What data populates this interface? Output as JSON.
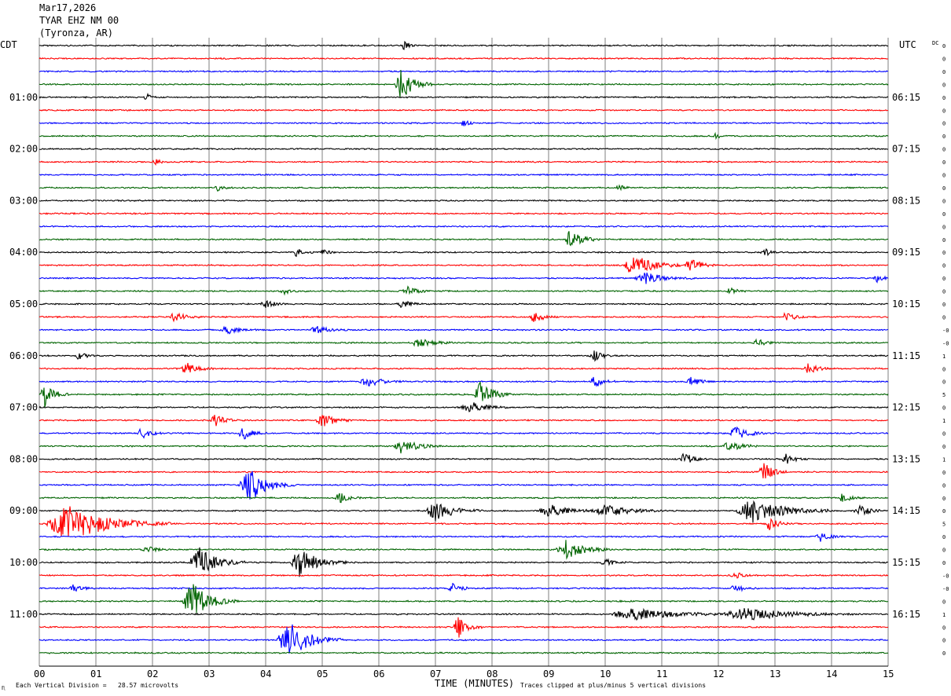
{
  "header": {
    "date": "Mar17,2026",
    "station": "TYAR EHZ NM 00",
    "location": "(Tyronza, AR)"
  },
  "left_zone_label": "CDT",
  "right_zone_label": "UTC",
  "dc_label": "DC",
  "chart_data": {
    "type": "line",
    "title": "TYAR EHZ NM 00",
    "xlabel": "TIME (MINUTES)",
    "xlim": [
      0,
      15
    ],
    "x_ticks": [
      "00",
      "01",
      "02",
      "03",
      "04",
      "05",
      "06",
      "07",
      "08",
      "09",
      "10",
      "11",
      "12",
      "13",
      "14",
      "15"
    ],
    "traces_per_row_minutes": 15,
    "trace_count": 48,
    "trace_colors": [
      "#000000",
      "#ff0000",
      "#0000ff",
      "#006400"
    ],
    "left_hour_labels": [
      {
        "trace": 4,
        "label": "01:00"
      },
      {
        "trace": 8,
        "label": "02:00"
      },
      {
        "trace": 12,
        "label": "03:00"
      },
      {
        "trace": 16,
        "label": "04:00"
      },
      {
        "trace": 20,
        "label": "05:00"
      },
      {
        "trace": 24,
        "label": "06:00"
      },
      {
        "trace": 28,
        "label": "07:00"
      },
      {
        "trace": 32,
        "label": "08:00"
      },
      {
        "trace": 36,
        "label": "09:00"
      },
      {
        "trace": 40,
        "label": "10:00"
      },
      {
        "trace": 44,
        "label": "11:00"
      }
    ],
    "right_hour_labels": [
      {
        "trace": 4,
        "label": "06:15"
      },
      {
        "trace": 8,
        "label": "07:15"
      },
      {
        "trace": 12,
        "label": "08:15"
      },
      {
        "trace": 16,
        "label": "09:15"
      },
      {
        "trace": 20,
        "label": "10:15"
      },
      {
        "trace": 24,
        "label": "11:15"
      },
      {
        "trace": 28,
        "label": "12:15"
      },
      {
        "trace": 32,
        "label": "13:15"
      },
      {
        "trace": 36,
        "label": "14:15"
      },
      {
        "trace": 40,
        "label": "15:15"
      },
      {
        "trace": 44,
        "label": "16:15"
      }
    ],
    "dc_offsets": [
      "0",
      "0",
      "0",
      "0",
      "0",
      "0",
      "0",
      "0",
      "0",
      "0",
      "0",
      "0",
      "0",
      "0",
      "0",
      "0",
      "0",
      "0",
      "0",
      "0",
      "0",
      "0",
      "-0",
      "-0",
      "1",
      "0",
      "0",
      "5",
      "0",
      "1",
      "0",
      "0",
      "1",
      "0",
      "0",
      "0",
      "0",
      "5",
      "0",
      "0",
      "0",
      "-0",
      "-0",
      "0",
      "1",
      "0",
      "0",
      "0"
    ],
    "events": [
      {
        "trace": 0,
        "t": 6.45,
        "amp": 1.2,
        "w": 0.15
      },
      {
        "trace": 3,
        "t": 6.4,
        "amp": 2.6,
        "w": 0.4
      },
      {
        "trace": 4,
        "t": 1.9,
        "amp": 0.5,
        "w": 0.2
      },
      {
        "trace": 6,
        "t": 7.5,
        "amp": 0.5,
        "w": 0.2
      },
      {
        "trace": 7,
        "t": 11.95,
        "amp": 0.4,
        "w": 0.15
      },
      {
        "trace": 9,
        "t": 2.05,
        "amp": 0.5,
        "w": 0.2
      },
      {
        "trace": 11,
        "t": 3.15,
        "amp": 0.5,
        "w": 0.2
      },
      {
        "trace": 11,
        "t": 10.25,
        "amp": 0.5,
        "w": 0.2
      },
      {
        "trace": 15,
        "t": 9.4,
        "amp": 2.0,
        "w": 0.35
      },
      {
        "trace": 16,
        "t": 4.55,
        "amp": 0.6,
        "w": 0.25
      },
      {
        "trace": 16,
        "t": 5.0,
        "amp": 0.5,
        "w": 0.2
      },
      {
        "trace": 16,
        "t": 12.8,
        "amp": 0.7,
        "w": 0.2
      },
      {
        "trace": 17,
        "t": 10.5,
        "amp": 2.0,
        "w": 0.6
      },
      {
        "trace": 17,
        "t": 11.5,
        "amp": 1.2,
        "w": 0.35
      },
      {
        "trace": 18,
        "t": 10.7,
        "amp": 1.0,
        "w": 0.6
      },
      {
        "trace": 18,
        "t": 14.8,
        "amp": 0.6,
        "w": 0.2
      },
      {
        "trace": 19,
        "t": 4.3,
        "amp": 0.5,
        "w": 0.3
      },
      {
        "trace": 19,
        "t": 6.5,
        "amp": 0.8,
        "w": 0.3
      },
      {
        "trace": 19,
        "t": 12.2,
        "amp": 0.6,
        "w": 0.2
      },
      {
        "trace": 20,
        "t": 4.0,
        "amp": 0.6,
        "w": 0.3
      },
      {
        "trace": 20,
        "t": 6.4,
        "amp": 0.7,
        "w": 0.3
      },
      {
        "trace": 21,
        "t": 2.4,
        "amp": 0.8,
        "w": 0.35
      },
      {
        "trace": 21,
        "t": 8.75,
        "amp": 1.0,
        "w": 0.3
      },
      {
        "trace": 21,
        "t": 13.2,
        "amp": 0.7,
        "w": 0.35
      },
      {
        "trace": 22,
        "t": 3.3,
        "amp": 0.7,
        "w": 0.4
      },
      {
        "trace": 22,
        "t": 4.9,
        "amp": 0.7,
        "w": 0.4
      },
      {
        "trace": 23,
        "t": 6.7,
        "amp": 0.7,
        "w": 0.5
      },
      {
        "trace": 23,
        "t": 12.7,
        "amp": 0.6,
        "w": 0.3
      },
      {
        "trace": 24,
        "t": 0.7,
        "amp": 0.8,
        "w": 0.2
      },
      {
        "trace": 24,
        "t": 9.8,
        "amp": 0.9,
        "w": 0.25
      },
      {
        "trace": 25,
        "t": 2.6,
        "amp": 1.0,
        "w": 0.35
      },
      {
        "trace": 25,
        "t": 13.6,
        "amp": 0.9,
        "w": 0.3
      },
      {
        "trace": 26,
        "t": 5.8,
        "amp": 0.8,
        "w": 0.5
      },
      {
        "trace": 26,
        "t": 9.8,
        "amp": 1.1,
        "w": 0.3
      },
      {
        "trace": 26,
        "t": 11.5,
        "amp": 0.8,
        "w": 0.3
      },
      {
        "trace": 27,
        "t": 0.1,
        "amp": 2.0,
        "w": 0.3
      },
      {
        "trace": 27,
        "t": 7.8,
        "amp": 2.2,
        "w": 0.4
      },
      {
        "trace": 28,
        "t": 7.6,
        "amp": 1.0,
        "w": 0.5
      },
      {
        "trace": 29,
        "t": 3.1,
        "amp": 1.0,
        "w": 0.3
      },
      {
        "trace": 29,
        "t": 5.0,
        "amp": 1.2,
        "w": 0.4
      },
      {
        "trace": 30,
        "t": 1.8,
        "amp": 1.0,
        "w": 0.3
      },
      {
        "trace": 30,
        "t": 3.6,
        "amp": 1.2,
        "w": 0.3
      },
      {
        "trace": 30,
        "t": 12.3,
        "amp": 1.2,
        "w": 0.4
      },
      {
        "trace": 31,
        "t": 6.4,
        "amp": 1.2,
        "w": 0.5
      },
      {
        "trace": 31,
        "t": 12.2,
        "amp": 1.0,
        "w": 0.4
      },
      {
        "trace": 32,
        "t": 11.4,
        "amp": 1.0,
        "w": 0.3
      },
      {
        "trace": 32,
        "t": 13.2,
        "amp": 0.8,
        "w": 0.3
      },
      {
        "trace": 33,
        "t": 12.8,
        "amp": 1.6,
        "w": 0.3
      },
      {
        "trace": 34,
        "t": 3.7,
        "amp": 2.8,
        "w": 0.6
      },
      {
        "trace": 35,
        "t": 14.2,
        "amp": 0.7,
        "w": 0.3
      },
      {
        "trace": 35,
        "t": 5.3,
        "amp": 0.9,
        "w": 0.3
      },
      {
        "trace": 36,
        "t": 7.0,
        "amp": 1.6,
        "w": 0.6
      },
      {
        "trace": 36,
        "t": 9.0,
        "amp": 1.2,
        "w": 0.6
      },
      {
        "trace": 36,
        "t": 10.0,
        "amp": 1.0,
        "w": 0.8
      },
      {
        "trace": 36,
        "t": 12.6,
        "amp": 2.2,
        "w": 1.0
      },
      {
        "trace": 36,
        "t": 14.5,
        "amp": 0.8,
        "w": 0.4
      },
      {
        "trace": 37,
        "t": 0.5,
        "amp": 3.0,
        "w": 1.3
      },
      {
        "trace": 37,
        "t": 12.9,
        "amp": 1.0,
        "w": 0.3
      },
      {
        "trace": 38,
        "t": 13.8,
        "amp": 0.8,
        "w": 0.3
      },
      {
        "trace": 39,
        "t": 9.3,
        "amp": 1.6,
        "w": 0.6
      },
      {
        "trace": 39,
        "t": 1.9,
        "amp": 0.6,
        "w": 0.3
      },
      {
        "trace": 40,
        "t": 2.8,
        "amp": 2.6,
        "w": 0.6
      },
      {
        "trace": 40,
        "t": 4.6,
        "amp": 2.2,
        "w": 0.6
      },
      {
        "trace": 40,
        "t": 10.0,
        "amp": 0.6,
        "w": 0.3
      },
      {
        "trace": 41,
        "t": 12.3,
        "amp": 0.5,
        "w": 0.3
      },
      {
        "trace": 42,
        "t": 0.6,
        "amp": 0.7,
        "w": 0.3
      },
      {
        "trace": 42,
        "t": 7.3,
        "amp": 0.7,
        "w": 0.3
      },
      {
        "trace": 42,
        "t": 12.3,
        "amp": 0.7,
        "w": 0.3
      },
      {
        "trace": 43,
        "t": 2.7,
        "amp": 3.0,
        "w": 0.6
      },
      {
        "trace": 44,
        "t": 10.5,
        "amp": 1.0,
        "w": 1.4
      },
      {
        "trace": 44,
        "t": 12.5,
        "amp": 1.0,
        "w": 1.4
      },
      {
        "trace": 45,
        "t": 7.4,
        "amp": 1.8,
        "w": 0.3
      },
      {
        "trace": 46,
        "t": 4.4,
        "amp": 3.0,
        "w": 0.7
      }
    ]
  },
  "footer": {
    "vertical_division": "Each Vertical Division =   28.57 microvolts",
    "clip_note": "Traces clipped at plus/minus 5 vertical divisions",
    "corner_mark": "♏"
  }
}
